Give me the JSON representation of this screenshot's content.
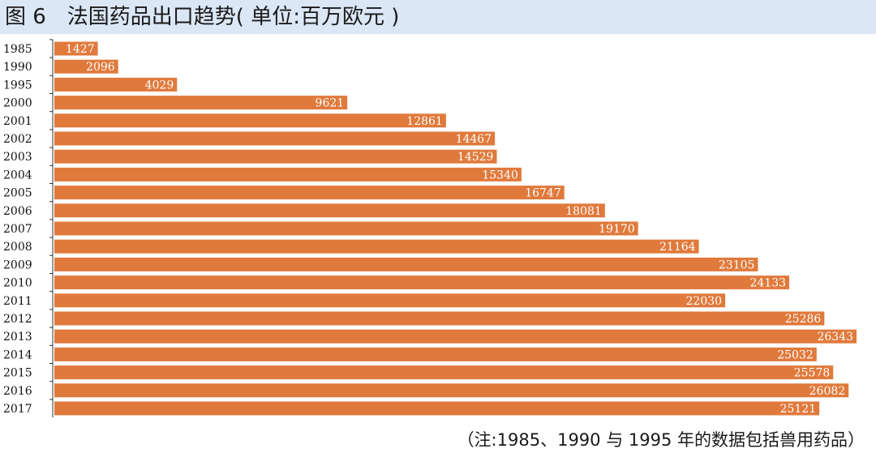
{
  "title": "图 6　法国药品出口趋势( 单位:百万欧元 )",
  "footnote": "（注:1985、1990 与 1995 年的数据包括兽用药品）",
  "colors": {
    "bar": "#e07a3c",
    "header_bg": "#dbe7f5",
    "value_text": "#ffffff",
    "axis": "#333333"
  },
  "chart_data": {
    "type": "bar",
    "orientation": "horizontal",
    "title": "法国药品出口趋势",
    "unit": "百万欧元",
    "categories": [
      "1985",
      "1990",
      "1995",
      "2000",
      "2001",
      "2002",
      "2003",
      "2004",
      "2005",
      "2006",
      "2007",
      "2008",
      "2009",
      "2010",
      "2011",
      "2012",
      "2013",
      "2014",
      "2015",
      "2016",
      "2017"
    ],
    "values": [
      1427,
      2096,
      4029,
      9621,
      12861,
      14467,
      14529,
      15340,
      16747,
      18081,
      19170,
      21164,
      23105,
      24133,
      22030,
      25286,
      26343,
      25032,
      25578,
      26082,
      25121
    ],
    "value_labels": [
      "1427",
      "2096",
      "4029",
      "9621",
      "12861",
      "14467",
      "14529",
      "15340",
      "16747",
      "18081",
      "19170",
      "21164",
      "23105",
      "24133",
      "22030",
      "25286",
      "26343",
      "25032",
      "25578",
      "26082",
      "25121"
    ],
    "xlim": [
      0,
      26343
    ],
    "grid": false,
    "legend": "none",
    "data_labels": "inside-end"
  }
}
